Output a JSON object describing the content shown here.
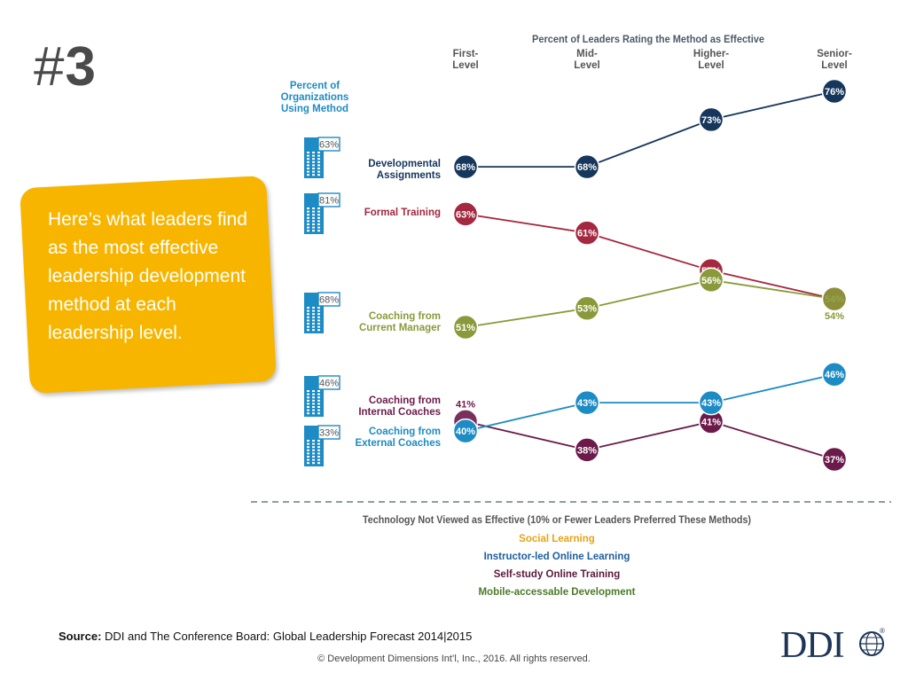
{
  "slide": {
    "hash": "#",
    "number": "3"
  },
  "callout": {
    "text": "Here’s what leaders find as the most effective leadership development method at each leadership level."
  },
  "colors": {
    "developmental": "#16365c",
    "formal": "#a4283f",
    "coaching_manager": "#8a9a3a",
    "coaching_internal": "#6b1a4a",
    "coaching_external": "#1d8bc4",
    "social_learning": "#e8a317",
    "instructor_led": "#1f5fa0",
    "self_study": "#5a1a3c",
    "mobile": "#4a7a2a",
    "header": "#4a5a6a"
  },
  "chart_data": {
    "type": "line",
    "title": "Percent of Leaders Rating the Method as Effective",
    "categories": [
      "First-Level",
      "Mid-Level",
      "Higher-Level",
      "Senior-Level"
    ],
    "category_lines": [
      [
        "First-",
        "Level"
      ],
      [
        "Mid-",
        "Level"
      ],
      [
        "Higher-",
        "Level"
      ],
      [
        "Senior-",
        "Level"
      ]
    ],
    "ylim": [
      35,
      78
    ],
    "org_header": [
      "Percent of",
      "Organizations",
      "Using Method"
    ],
    "series": [
      {
        "key": "developmental",
        "name": "Developmental Assignments",
        "label_lines": [
          "Developmental",
          "Assignments"
        ],
        "org_pct": "63%",
        "values": [
          68,
          68,
          73,
          76
        ]
      },
      {
        "key": "formal",
        "name": "Formal Training",
        "label_lines": [
          "Formal Training"
        ],
        "org_pct": "81%",
        "values": [
          63,
          61,
          57,
          54
        ]
      },
      {
        "key": "coaching_manager",
        "name": "Coaching from Current Manager",
        "label_lines": [
          "Coaching from",
          "Current Manager"
        ],
        "org_pct": "68%",
        "values": [
          51,
          53,
          56,
          54
        ]
      },
      {
        "key": "coaching_internal",
        "name": "Coaching from Internal Coaches",
        "label_lines": [
          "Coaching from",
          "Internal Coaches"
        ],
        "org_pct": "46%",
        "values": [
          41,
          38,
          41,
          37
        ]
      },
      {
        "key": "coaching_external",
        "name": "Coaching from External Coaches",
        "label_lines": [
          "Coaching from",
          "External Coaches"
        ],
        "org_pct": "33%",
        "values": [
          40,
          43,
          43,
          46
        ]
      }
    ],
    "not_effective": {
      "title": "Technology Not Viewed as Effective (10% or Fewer Leaders Preferred These Methods)",
      "items": [
        {
          "label": "Social Learning",
          "color_key": "social_learning"
        },
        {
          "label": "Instructor-led Online Learning",
          "color_key": "instructor_led"
        },
        {
          "label": "Self-study Online Training",
          "color_key": "self_study"
        },
        {
          "label": "Mobile-accessable Development",
          "color_key": "mobile"
        }
      ]
    }
  },
  "footer": {
    "source_label": "Source:",
    "source_text": " DDI and The Conference Board: Global Leadership Forecast 2014|2015",
    "copyright": "© Development Dimensions Int’l, Inc., 2016.  All rights reserved.",
    "logo": "DDI",
    "logo_mark": "®"
  }
}
